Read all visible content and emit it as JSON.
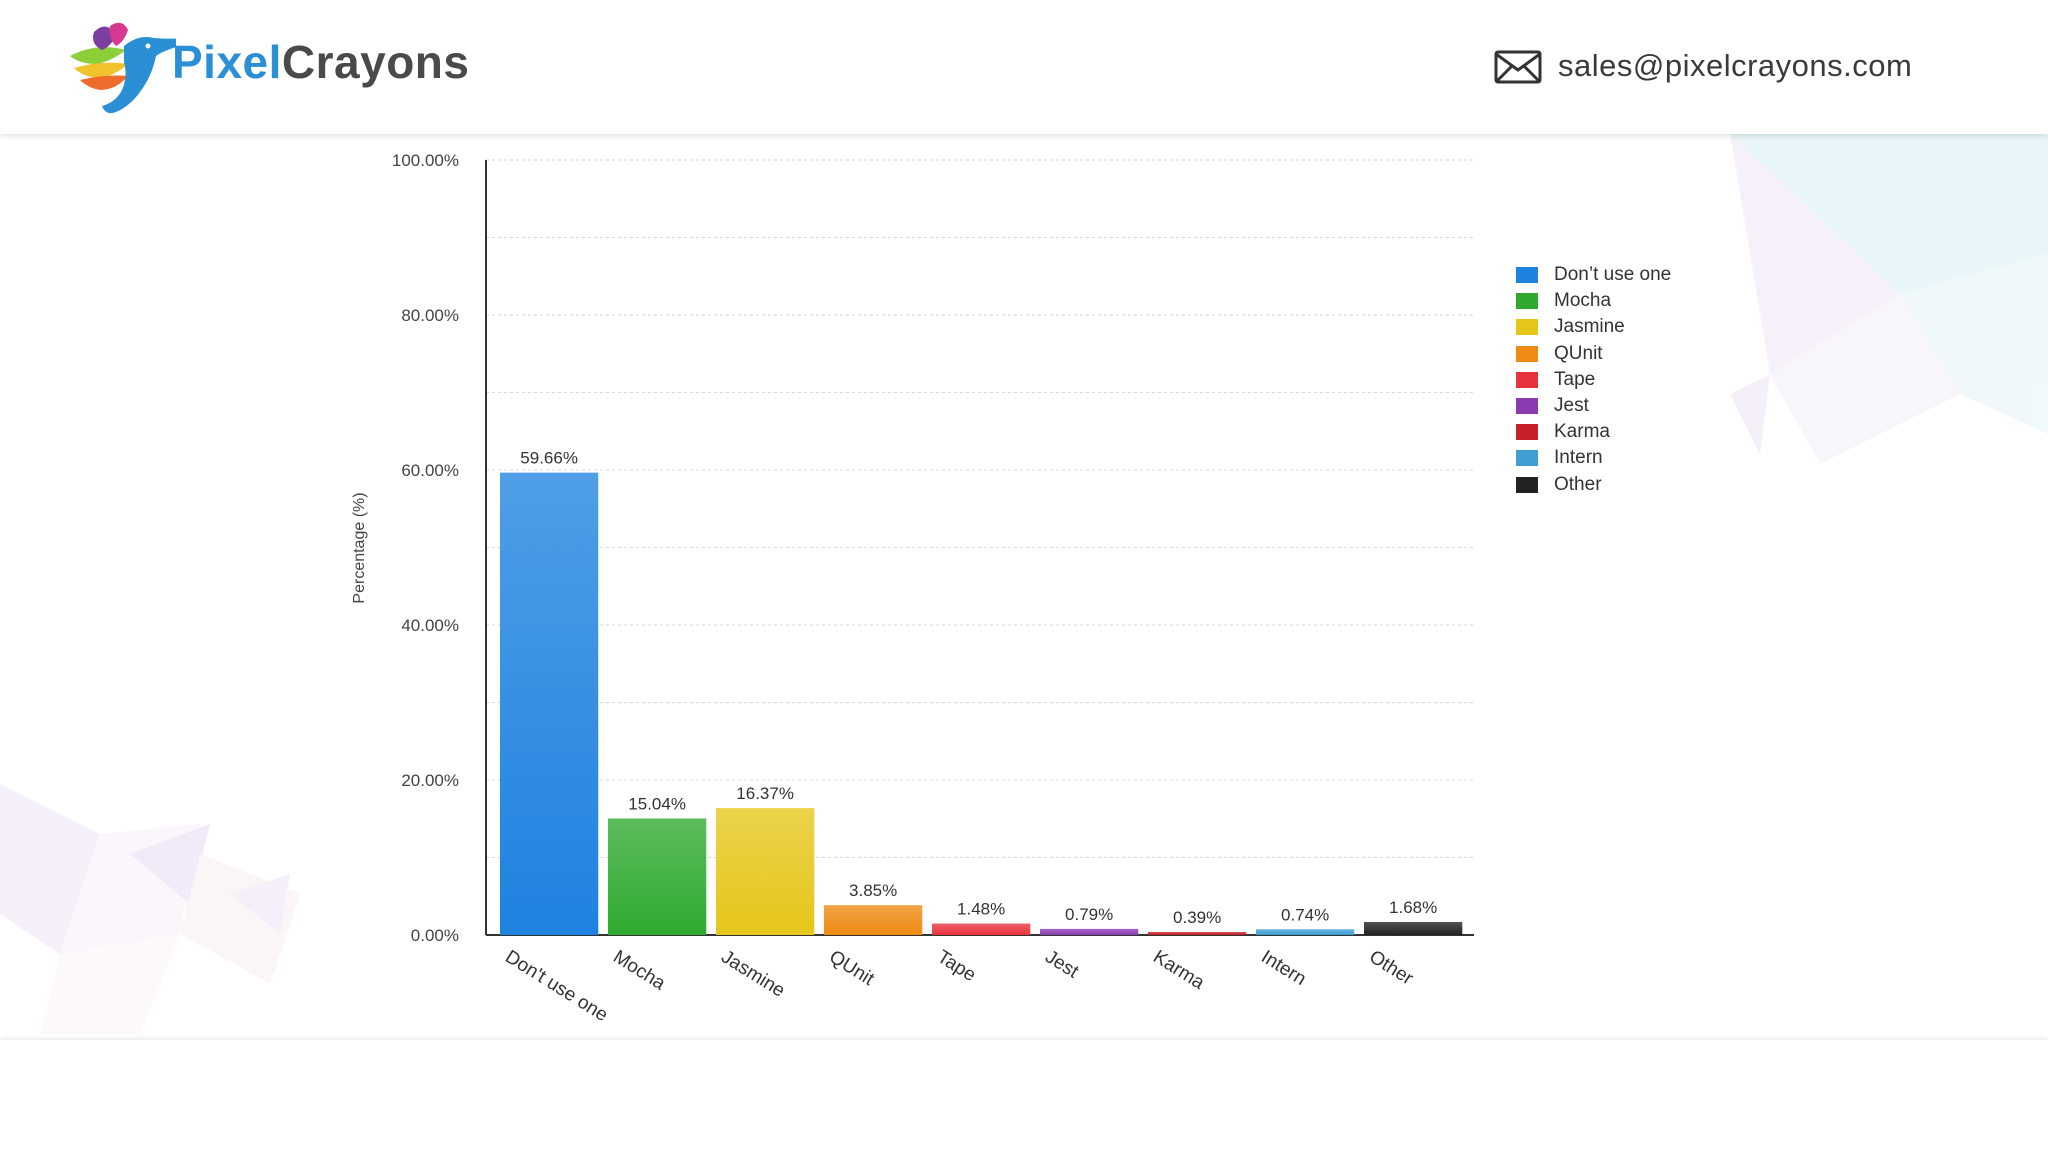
{
  "header": {
    "brand_part1": "Pixel",
    "brand_part2": "Crayons",
    "email": "sales@pixelcrayons.com"
  },
  "icons": [
    "hummingbird-logo-icon",
    "mail-icon"
  ],
  "colors": {
    "brand_blue": "#2b8fd6",
    "brand_gray": "#4a4a4a"
  },
  "chart_data": {
    "type": "bar",
    "title": "",
    "xlabel": "",
    "ylabel": "Percentage (%)",
    "ylim": [
      0,
      100
    ],
    "y_ticks": [
      "0.00%",
      "20.00%",
      "40.00%",
      "60.00%",
      "80.00%",
      "100.00%"
    ],
    "grid": true,
    "legend_position": "right",
    "categories": [
      "Don’t use one",
      "Mocha",
      "Jasmine",
      "QUnit",
      "Tape",
      "Jest",
      "Karma",
      "Intern",
      "Other"
    ],
    "values": [
      59.66,
      15.04,
      16.37,
      3.85,
      1.48,
      0.79,
      0.39,
      0.74,
      1.68
    ],
    "value_labels": [
      "59.66%",
      "15.04%",
      "16.37%",
      "3.85%",
      "1.48%",
      "0.79%",
      "0.39%",
      "0.74%",
      "1.68%"
    ],
    "x_tick_labels": [
      "Don't use one",
      "Mocha",
      "Jasmine",
      "QUnit",
      "Tape",
      "Jest",
      "Karma",
      "Intern",
      "Other"
    ],
    "colors": [
      "#1e82e0",
      "#2faa2f",
      "#e5c619",
      "#ef8a12",
      "#e8333e",
      "#8a3bb0",
      "#c8202a",
      "#3f9ed2",
      "#222222"
    ]
  }
}
